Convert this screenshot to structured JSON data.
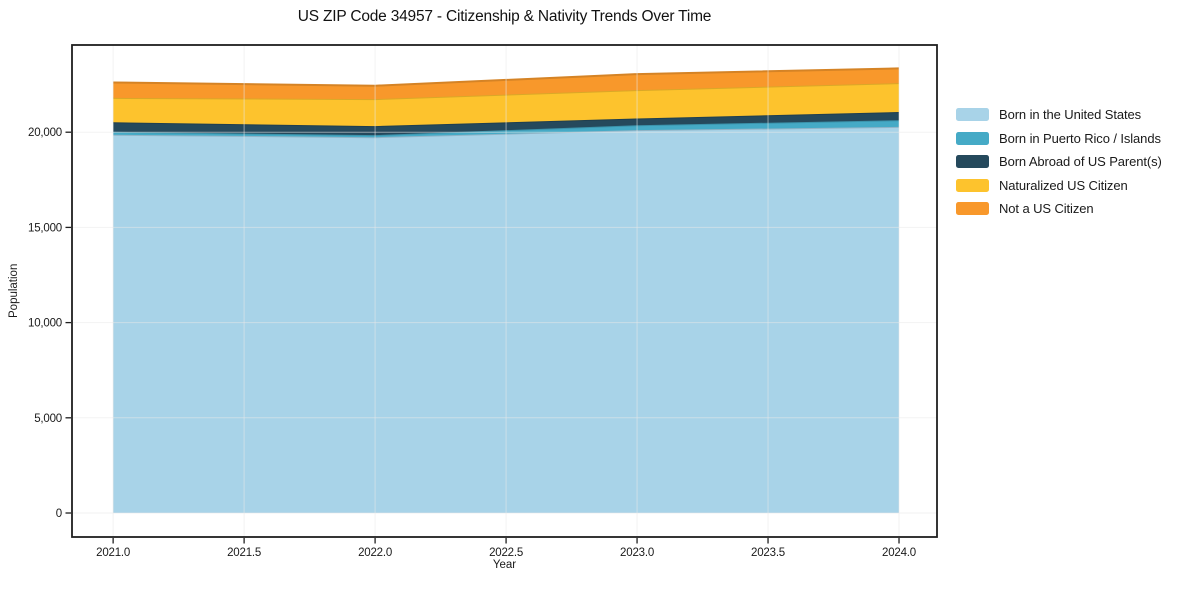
{
  "chart_data": {
    "type": "area",
    "title": "US ZIP Code 34957 - Citizenship & Nativity Trends Over Time",
    "xlabel": "Year",
    "ylabel": "Population",
    "x": [
      2021,
      2022,
      2023,
      2024
    ],
    "series": [
      {
        "name": "Born in the United States",
        "color": "#A8D3E8",
        "values": [
          19870,
          19740,
          20110,
          20280
        ]
      },
      {
        "name": "Born in Puerto Rico / Islands",
        "color": "#45AAC6",
        "values": [
          150,
          110,
          260,
          350
        ]
      },
      {
        "name": "Born Abroad of US Parent(s)",
        "color": "#25495C",
        "values": [
          500,
          470,
          350,
          430
        ]
      },
      {
        "name": "Naturalized US Citizen",
        "color": "#FDC32D",
        "values": [
          1280,
          1420,
          1490,
          1520
        ]
      },
      {
        "name": "Not a US Citizen",
        "color": "#F8982B",
        "values": [
          810,
          700,
          840,
          770
        ]
      }
    ],
    "stacked": true,
    "x_ticks": [
      2021.0,
      2021.5,
      2022.0,
      2022.5,
      2023.0,
      2023.5,
      2024.0
    ],
    "x_tick_labels": [
      "2021.0",
      "2021.5",
      "2022.0",
      "2022.5",
      "2023.0",
      "2023.5",
      "2024.0"
    ],
    "y_ticks": [
      0,
      5000,
      10000,
      15000,
      20000
    ],
    "y_tick_labels": [
      "0",
      "5,000",
      "10,000",
      "15,000",
      "20,000"
    ],
    "xlim": [
      2020.843,
      2024.145
    ],
    "ylim": [
      -1260,
      24580
    ],
    "grid": true,
    "legend_position": "right",
    "colors": {
      "spine": "#1f1f1f",
      "tick": "#1f1f1f",
      "grid": "#e8e8e8",
      "background": "#ffffff"
    }
  }
}
